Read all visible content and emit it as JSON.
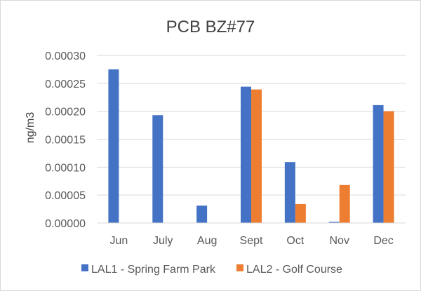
{
  "chart_data": {
    "type": "bar",
    "title": "PCB BZ#77",
    "xlabel": "",
    "ylabel": "ng/m3",
    "ylim": [
      0,
      0.0003
    ],
    "yticks": [
      "0.00000",
      "0.00005",
      "0.00010",
      "0.00015",
      "0.00020",
      "0.00025",
      "0.00030"
    ],
    "ytick_values": [
      0,
      5e-05,
      0.0001,
      0.00015,
      0.0002,
      0.00025,
      0.0003
    ],
    "grid": true,
    "legend_position": "bottom",
    "categories": [
      "Jun",
      "July",
      "Aug",
      "Sept",
      "Oct",
      "Nov",
      "Dec"
    ],
    "series": [
      {
        "name": "LAL1 - Spring Farm Park",
        "color": "#4472C4",
        "values": [
          0.000275,
          0.000193,
          3.1e-05,
          0.000244,
          0.000109,
          2e-06,
          0.000211
        ]
      },
      {
        "name": "LAL2 - Golf Course",
        "color": "#ED7D31",
        "values": [
          null,
          null,
          null,
          0.000239,
          3.4e-05,
          6.8e-05,
          0.0002
        ]
      }
    ]
  }
}
